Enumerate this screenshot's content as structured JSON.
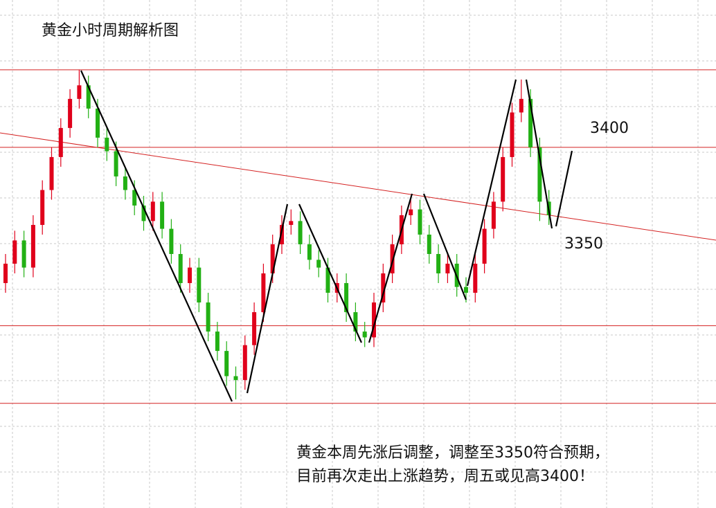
{
  "chart_data": {
    "type": "candlestick",
    "title": "黄金小时周期解析图",
    "ylim": [
      3214,
      3476
    ],
    "up_color": "#e0001b",
    "down_color": "#22b014",
    "open": [
      3330,
      3340,
      3352,
      3338,
      3360,
      3378,
      3395,
      3410,
      3425,
      3432,
      3420,
      3405,
      3398,
      3385,
      3378,
      3370,
      3362,
      3372,
      3358,
      3345,
      3330,
      3338,
      3320,
      3305,
      3295,
      3282,
      3280,
      3298,
      3315,
      3335,
      3350,
      3360,
      3362,
      3350,
      3342,
      3338,
      3325,
      3330,
      3315,
      3305,
      3302,
      3320,
      3335,
      3350,
      3365,
      3368,
      3355,
      3345,
      3335,
      3340,
      3328,
      3325,
      3340,
      3358,
      3372,
      3395,
      3418,
      3425,
      3400,
      3372
    ],
    "high": [
      3345,
      3357,
      3357,
      3365,
      3383,
      3400,
      3415,
      3430,
      3440,
      3437,
      3425,
      3410,
      3403,
      3390,
      3383,
      3375,
      3377,
      3377,
      3363,
      3350,
      3343,
      3343,
      3325,
      3310,
      3300,
      3287,
      3303,
      3320,
      3340,
      3355,
      3365,
      3368,
      3367,
      3355,
      3347,
      3343,
      3335,
      3335,
      3320,
      3310,
      3325,
      3340,
      3355,
      3370,
      3374,
      3373,
      3360,
      3350,
      3345,
      3345,
      3333,
      3345,
      3363,
      3377,
      3400,
      3423,
      3435,
      3430,
      3405,
      3378
    ],
    "low": [
      3325,
      3335,
      3333,
      3333,
      3355,
      3373,
      3390,
      3405,
      3420,
      3415,
      3400,
      3393,
      3380,
      3373,
      3365,
      3357,
      3357,
      3353,
      3340,
      3325,
      3325,
      3315,
      3300,
      3290,
      3277,
      3270,
      3275,
      3293,
      3310,
      3330,
      3345,
      3355,
      3345,
      3337,
      3333,
      3320,
      3320,
      3310,
      3300,
      3297,
      3297,
      3315,
      3330,
      3345,
      3360,
      3350,
      3340,
      3330,
      3330,
      3323,
      3320,
      3320,
      3335,
      3353,
      3367,
      3390,
      3413,
      3395,
      3362,
      3360
    ],
    "close": [
      3340,
      3352,
      3338,
      3360,
      3378,
      3395,
      3410,
      3425,
      3432,
      3420,
      3405,
      3398,
      3385,
      3378,
      3370,
      3362,
      3372,
      3358,
      3345,
      3330,
      3338,
      3320,
      3305,
      3295,
      3282,
      3280,
      3298,
      3315,
      3335,
      3350,
      3360,
      3362,
      3350,
      3342,
      3338,
      3325,
      3330,
      3315,
      3305,
      3302,
      3320,
      3335,
      3350,
      3365,
      3368,
      3355,
      3345,
      3335,
      3340,
      3328,
      3325,
      3340,
      3358,
      3372,
      3395,
      3418,
      3425,
      3400,
      3372,
      3365
    ],
    "levels": [
      3440,
      3400,
      3308,
      3268
    ],
    "level_color": "#d42020",
    "annotations": [
      "3400",
      "3350"
    ],
    "note": [
      "黄金本周先涨后调整，调整至3350符合预期，",
      "目前再次走出上涨趋势，周五或见高3400！"
    ]
  }
}
